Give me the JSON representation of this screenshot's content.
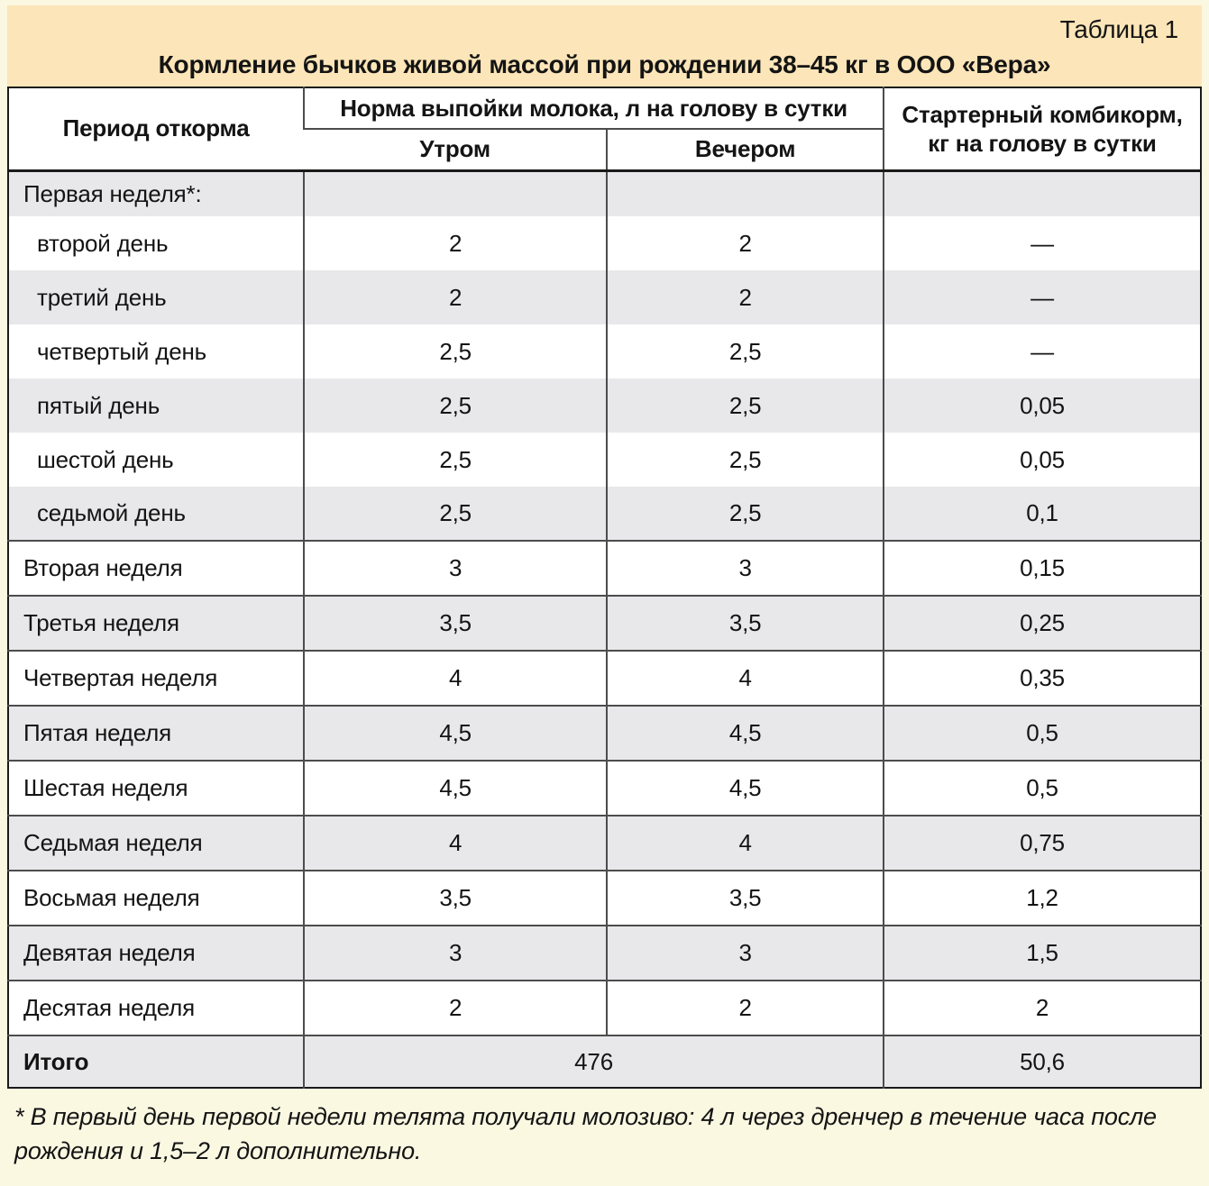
{
  "page": {
    "label": "Таблица 1",
    "title": "Кормление бычков живой массой при рождении 38–45 кг в ООО «Вера»",
    "footnote": "* В первый день первой недели телята получали молозиво: 4 л через дренчер в течение часа после рождения и 1,5–2 л дополнительно."
  },
  "header": {
    "col_period": "Период откорма",
    "col_milk_group": "Норма выпойки молока, л на голову в сутки",
    "col_morning": "Утром",
    "col_evening": "Вечером",
    "col_starter": "Стартерный комбикорм, кг на голову в сутки"
  },
  "rows": [
    {
      "period": "Первая неделя*:",
      "morning": "",
      "evening": "",
      "starter": "",
      "indent": false
    },
    {
      "period": "второй день",
      "morning": "2",
      "evening": "2",
      "starter": "—",
      "indent": true
    },
    {
      "period": "третий день",
      "morning": "2",
      "evening": "2",
      "starter": "—",
      "indent": true
    },
    {
      "period": "четвертый день",
      "morning": "2,5",
      "evening": "2,5",
      "starter": "—",
      "indent": true
    },
    {
      "period": "пятый день",
      "morning": "2,5",
      "evening": "2,5",
      "starter": "0,05",
      "indent": true
    },
    {
      "period": "шестой день",
      "morning": "2,5",
      "evening": "2,5",
      "starter": "0,05",
      "indent": true
    },
    {
      "period": "седьмой день",
      "morning": "2,5",
      "evening": "2,5",
      "starter": "0,1",
      "indent": true
    },
    {
      "period": "Вторая неделя",
      "morning": "3",
      "evening": "3",
      "starter": "0,15",
      "indent": false
    },
    {
      "period": "Третья неделя",
      "morning": "3,5",
      "evening": "3,5",
      "starter": "0,25",
      "indent": false
    },
    {
      "period": "Четвертая неделя",
      "morning": "4",
      "evening": "4",
      "starter": "0,35",
      "indent": false
    },
    {
      "period": "Пятая неделя",
      "morning": "4,5",
      "evening": "4,5",
      "starter": "0,5",
      "indent": false
    },
    {
      "period": "Шестая неделя",
      "morning": "4,5",
      "evening": "4,5",
      "starter": "0,5",
      "indent": false
    },
    {
      "period": "Седьмая неделя",
      "morning": "4",
      "evening": "4",
      "starter": "0,75",
      "indent": false
    },
    {
      "period": "Восьмая неделя",
      "morning": "3,5",
      "evening": "3,5",
      "starter": "1,2",
      "indent": false
    },
    {
      "period": "Девятая неделя",
      "morning": "3",
      "evening": "3",
      "starter": "1,5",
      "indent": false
    },
    {
      "period": "Десятая неделя",
      "morning": "2",
      "evening": "2",
      "starter": "2",
      "indent": false
    }
  ],
  "total": {
    "label": "Итого",
    "milk": "476",
    "starter": "50,6"
  },
  "colors": {
    "cream": "#fbf8e2",
    "peach": "#fce5b8",
    "shade": "#e8e8ea",
    "border-dark": "#1a1a1a",
    "border-mid": "#4c4c4c",
    "text": "#141414"
  }
}
